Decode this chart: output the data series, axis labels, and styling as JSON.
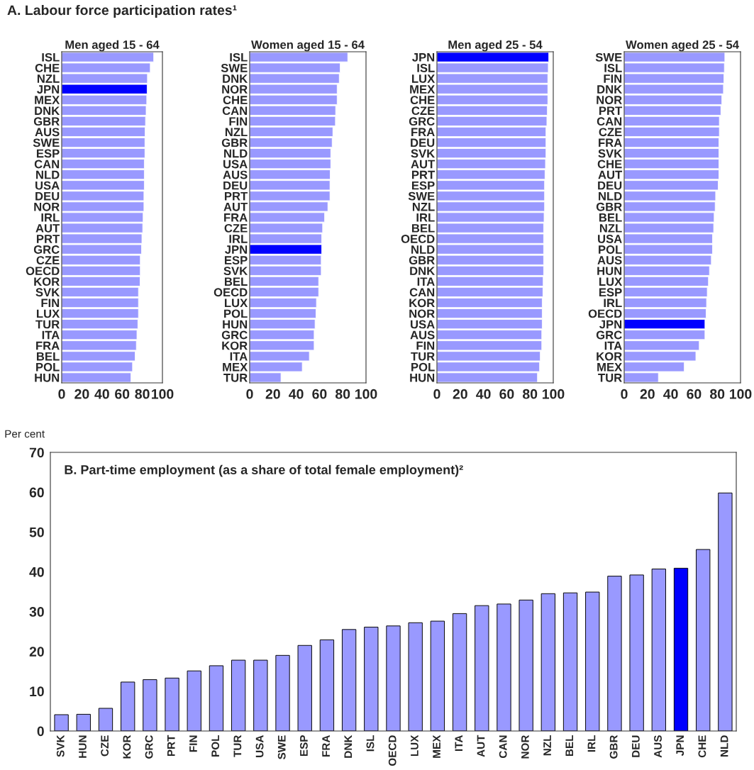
{
  "chart_data": [
    {
      "type": "other",
      "title": "A. Labour force participation rates¹"
    },
    {
      "type": "bar",
      "orientation": "horizontal",
      "title": "Men aged 15 - 64",
      "categories": [
        "ISL",
        "CHE",
        "NZL",
        "JPN",
        "MEX",
        "DNK",
        "GBR",
        "AUS",
        "SWE",
        "ESP",
        "CAN",
        "NLD",
        "USA",
        "DEU",
        "NOR",
        "IRL",
        "AUT",
        "PRT",
        "GRC",
        "CZE",
        "OECD",
        "KOR",
        "SVK",
        "FIN",
        "LUX",
        "TUR",
        "ITA",
        "FRA",
        "BEL",
        "POL",
        "HUN"
      ],
      "values": [
        91.3,
        87.9,
        85.1,
        84.8,
        84.4,
        83.8,
        83.2,
        82.8,
        82.6,
        82.6,
        82.0,
        82.0,
        82.0,
        81.6,
        81.6,
        80.8,
        80.4,
        79.6,
        79.2,
        78.0,
        78.0,
        77.8,
        76.2,
        76.2,
        76.2,
        75.6,
        74.7,
        74.1,
        72.9,
        70.3,
        68.7
      ],
      "colors": [
        "#9999ff",
        "#9999ff",
        "#9999ff",
        "#0000ff",
        "#9999ff",
        "#9999ff",
        "#9999ff",
        "#9999ff",
        "#9999ff",
        "#9999ff",
        "#9999ff",
        "#9999ff",
        "#9999ff",
        "#9999ff",
        "#9999ff",
        "#9999ff",
        "#9999ff",
        "#9999ff",
        "#9999ff",
        "#9999ff",
        "#9999ff",
        "#9999ff",
        "#9999ff",
        "#9999ff",
        "#9999ff",
        "#9999ff",
        "#9999ff",
        "#9999ff",
        "#9999ff",
        "#9999ff",
        "#9999ff"
      ],
      "xlim": [
        0,
        100
      ],
      "xticks": [
        0,
        20,
        40,
        60,
        80,
        100
      ]
    },
    {
      "type": "bar",
      "orientation": "horizontal",
      "title": "Women aged 15 - 64",
      "categories": [
        "ISL",
        "SWE",
        "DNK",
        "NOR",
        "CHE",
        "CAN",
        "FIN",
        "NZL",
        "GBR",
        "NLD",
        "USA",
        "AUS",
        "DEU",
        "PRT",
        "AUT",
        "FRA",
        "CZE",
        "IRL",
        "JPN",
        "ESP",
        "SVK",
        "BEL",
        "OECD",
        "LUX",
        "POL",
        "HUN",
        "GRC",
        "KOR",
        "ITA",
        "MEX",
        "TUR"
      ],
      "values": [
        84.3,
        77.8,
        77.0,
        75.2,
        75.2,
        73.9,
        73.7,
        71.5,
        70.9,
        69.7,
        69.7,
        69.2,
        69.0,
        69.0,
        67.2,
        64.4,
        62.7,
        61.9,
        61.9,
        61.5,
        61.5,
        59.3,
        59.3,
        57.4,
        57.0,
        56.2,
        55.4,
        55.4,
        51.3,
        45.2,
        26.9
      ],
      "colors": [
        "#9999ff",
        "#9999ff",
        "#9999ff",
        "#9999ff",
        "#9999ff",
        "#9999ff",
        "#9999ff",
        "#9999ff",
        "#9999ff",
        "#9999ff",
        "#9999ff",
        "#9999ff",
        "#9999ff",
        "#9999ff",
        "#9999ff",
        "#9999ff",
        "#9999ff",
        "#9999ff",
        "#0000ff",
        "#9999ff",
        "#9999ff",
        "#9999ff",
        "#9999ff",
        "#9999ff",
        "#9999ff",
        "#9999ff",
        "#9999ff",
        "#9999ff",
        "#9999ff",
        "#9999ff",
        "#9999ff"
      ],
      "xlim": [
        0,
        100
      ],
      "xticks": [
        0,
        20,
        40,
        60,
        80,
        100
      ]
    },
    {
      "type": "bar",
      "orientation": "horizontal",
      "title": "Men aged 25 - 54",
      "categories": [
        "JPN",
        "ISL",
        "LUX",
        "MEX",
        "CHE",
        "CZE",
        "GRC",
        "FRA",
        "DEU",
        "SVK",
        "AUT",
        "PRT",
        "ESP",
        "SWE",
        "NZL",
        "IRL",
        "BEL",
        "OECD",
        "NLD",
        "GBR",
        "DNK",
        "ITA",
        "CAN",
        "KOR",
        "NOR",
        "USA",
        "AUS",
        "FIN",
        "TUR",
        "POL",
        "HUN"
      ],
      "values": [
        96.1,
        95.7,
        95.3,
        95.3,
        95.3,
        94.9,
        94.5,
        93.7,
        93.7,
        93.7,
        93.3,
        92.9,
        92.5,
        92.5,
        92.5,
        92.1,
        91.7,
        91.7,
        91.7,
        91.7,
        91.7,
        91.3,
        91.1,
        90.5,
        90.5,
        90.5,
        90.1,
        90.1,
        88.8,
        88.2,
        86.4
      ],
      "colors": [
        "#0000ff",
        "#9999ff",
        "#9999ff",
        "#9999ff",
        "#9999ff",
        "#9999ff",
        "#9999ff",
        "#9999ff",
        "#9999ff",
        "#9999ff",
        "#9999ff",
        "#9999ff",
        "#9999ff",
        "#9999ff",
        "#9999ff",
        "#9999ff",
        "#9999ff",
        "#9999ff",
        "#9999ff",
        "#9999ff",
        "#9999ff",
        "#9999ff",
        "#9999ff",
        "#9999ff",
        "#9999ff",
        "#9999ff",
        "#9999ff",
        "#9999ff",
        "#9999ff",
        "#9999ff",
        "#9999ff"
      ],
      "xlim": [
        0,
        100
      ],
      "xticks": [
        0,
        20,
        40,
        60,
        80,
        100
      ]
    },
    {
      "type": "bar",
      "orientation": "horizontal",
      "title": "Women aged 25 - 54",
      "categories": [
        "SWE",
        "ISL",
        "FIN",
        "DNK",
        "NOR",
        "PRT",
        "CAN",
        "CZE",
        "FRA",
        "SVK",
        "CHE",
        "AUT",
        "DEU",
        "NLD",
        "GBR",
        "BEL",
        "NZL",
        "USA",
        "POL",
        "AUS",
        "HUN",
        "LUX",
        "ESP",
        "IRL",
        "OECD",
        "JPN",
        "GRC",
        "ITA",
        "KOR",
        "MEX",
        "TUR"
      ],
      "values": [
        86.5,
        86.1,
        85.7,
        85.3,
        83.9,
        83.1,
        81.8,
        81.8,
        81.4,
        81.4,
        81.4,
        81.4,
        80.8,
        78.6,
        78.2,
        77.3,
        76.9,
        75.9,
        75.9,
        74.9,
        73.3,
        72.4,
        71.4,
        70.8,
        70.4,
        69.4,
        69.4,
        64.5,
        61.6,
        51.6,
        29.4
      ],
      "colors": [
        "#9999ff",
        "#9999ff",
        "#9999ff",
        "#9999ff",
        "#9999ff",
        "#9999ff",
        "#9999ff",
        "#9999ff",
        "#9999ff",
        "#9999ff",
        "#9999ff",
        "#9999ff",
        "#9999ff",
        "#9999ff",
        "#9999ff",
        "#9999ff",
        "#9999ff",
        "#9999ff",
        "#9999ff",
        "#9999ff",
        "#9999ff",
        "#9999ff",
        "#9999ff",
        "#9999ff",
        "#9999ff",
        "#0000ff",
        "#9999ff",
        "#9999ff",
        "#9999ff",
        "#9999ff",
        "#9999ff"
      ],
      "xlim": [
        0,
        100
      ],
      "xticks": [
        0,
        20,
        40,
        60,
        80,
        100
      ]
    },
    {
      "type": "bar",
      "title": "B. Part-time employment (as a share of total female employment)²",
      "ylabel": "Per cent",
      "categories": [
        "SVK",
        "HUN",
        "CZE",
        "KOR",
        "GRC",
        "PRT",
        "FIN",
        "POL",
        "TUR",
        "USA",
        "SWE",
        "ESP",
        "FRA",
        "DNK",
        "ISL",
        "OECD",
        "LUX",
        "MEX",
        "ITA",
        "AUT",
        "CAN",
        "NOR",
        "NZL",
        "BEL",
        "IRL",
        "GBR",
        "DEU",
        "AUS",
        "JPN",
        "CHE",
        "NLD"
      ],
      "values": [
        4.1,
        4.2,
        5.7,
        12.3,
        12.9,
        13.3,
        15.1,
        16.4,
        17.8,
        17.8,
        19.0,
        21.5,
        22.9,
        25.5,
        26.1,
        26.4,
        27.2,
        27.6,
        29.5,
        31.5,
        31.9,
        32.9,
        34.5,
        34.7,
        34.9,
        38.9,
        39.2,
        40.7,
        40.9,
        45.6,
        59.8
      ],
      "colors": [
        "#9999ff",
        "#9999ff",
        "#9999ff",
        "#9999ff",
        "#9999ff",
        "#9999ff",
        "#9999ff",
        "#9999ff",
        "#9999ff",
        "#9999ff",
        "#9999ff",
        "#9999ff",
        "#9999ff",
        "#9999ff",
        "#9999ff",
        "#9999ff",
        "#9999ff",
        "#9999ff",
        "#9999ff",
        "#9999ff",
        "#9999ff",
        "#9999ff",
        "#9999ff",
        "#9999ff",
        "#9999ff",
        "#9999ff",
        "#9999ff",
        "#9999ff",
        "#0000ff",
        "#9999ff",
        "#9999ff"
      ],
      "ylim": [
        0,
        70
      ],
      "yticks": [
        0,
        10,
        20,
        30,
        40,
        50,
        60,
        70
      ]
    }
  ]
}
